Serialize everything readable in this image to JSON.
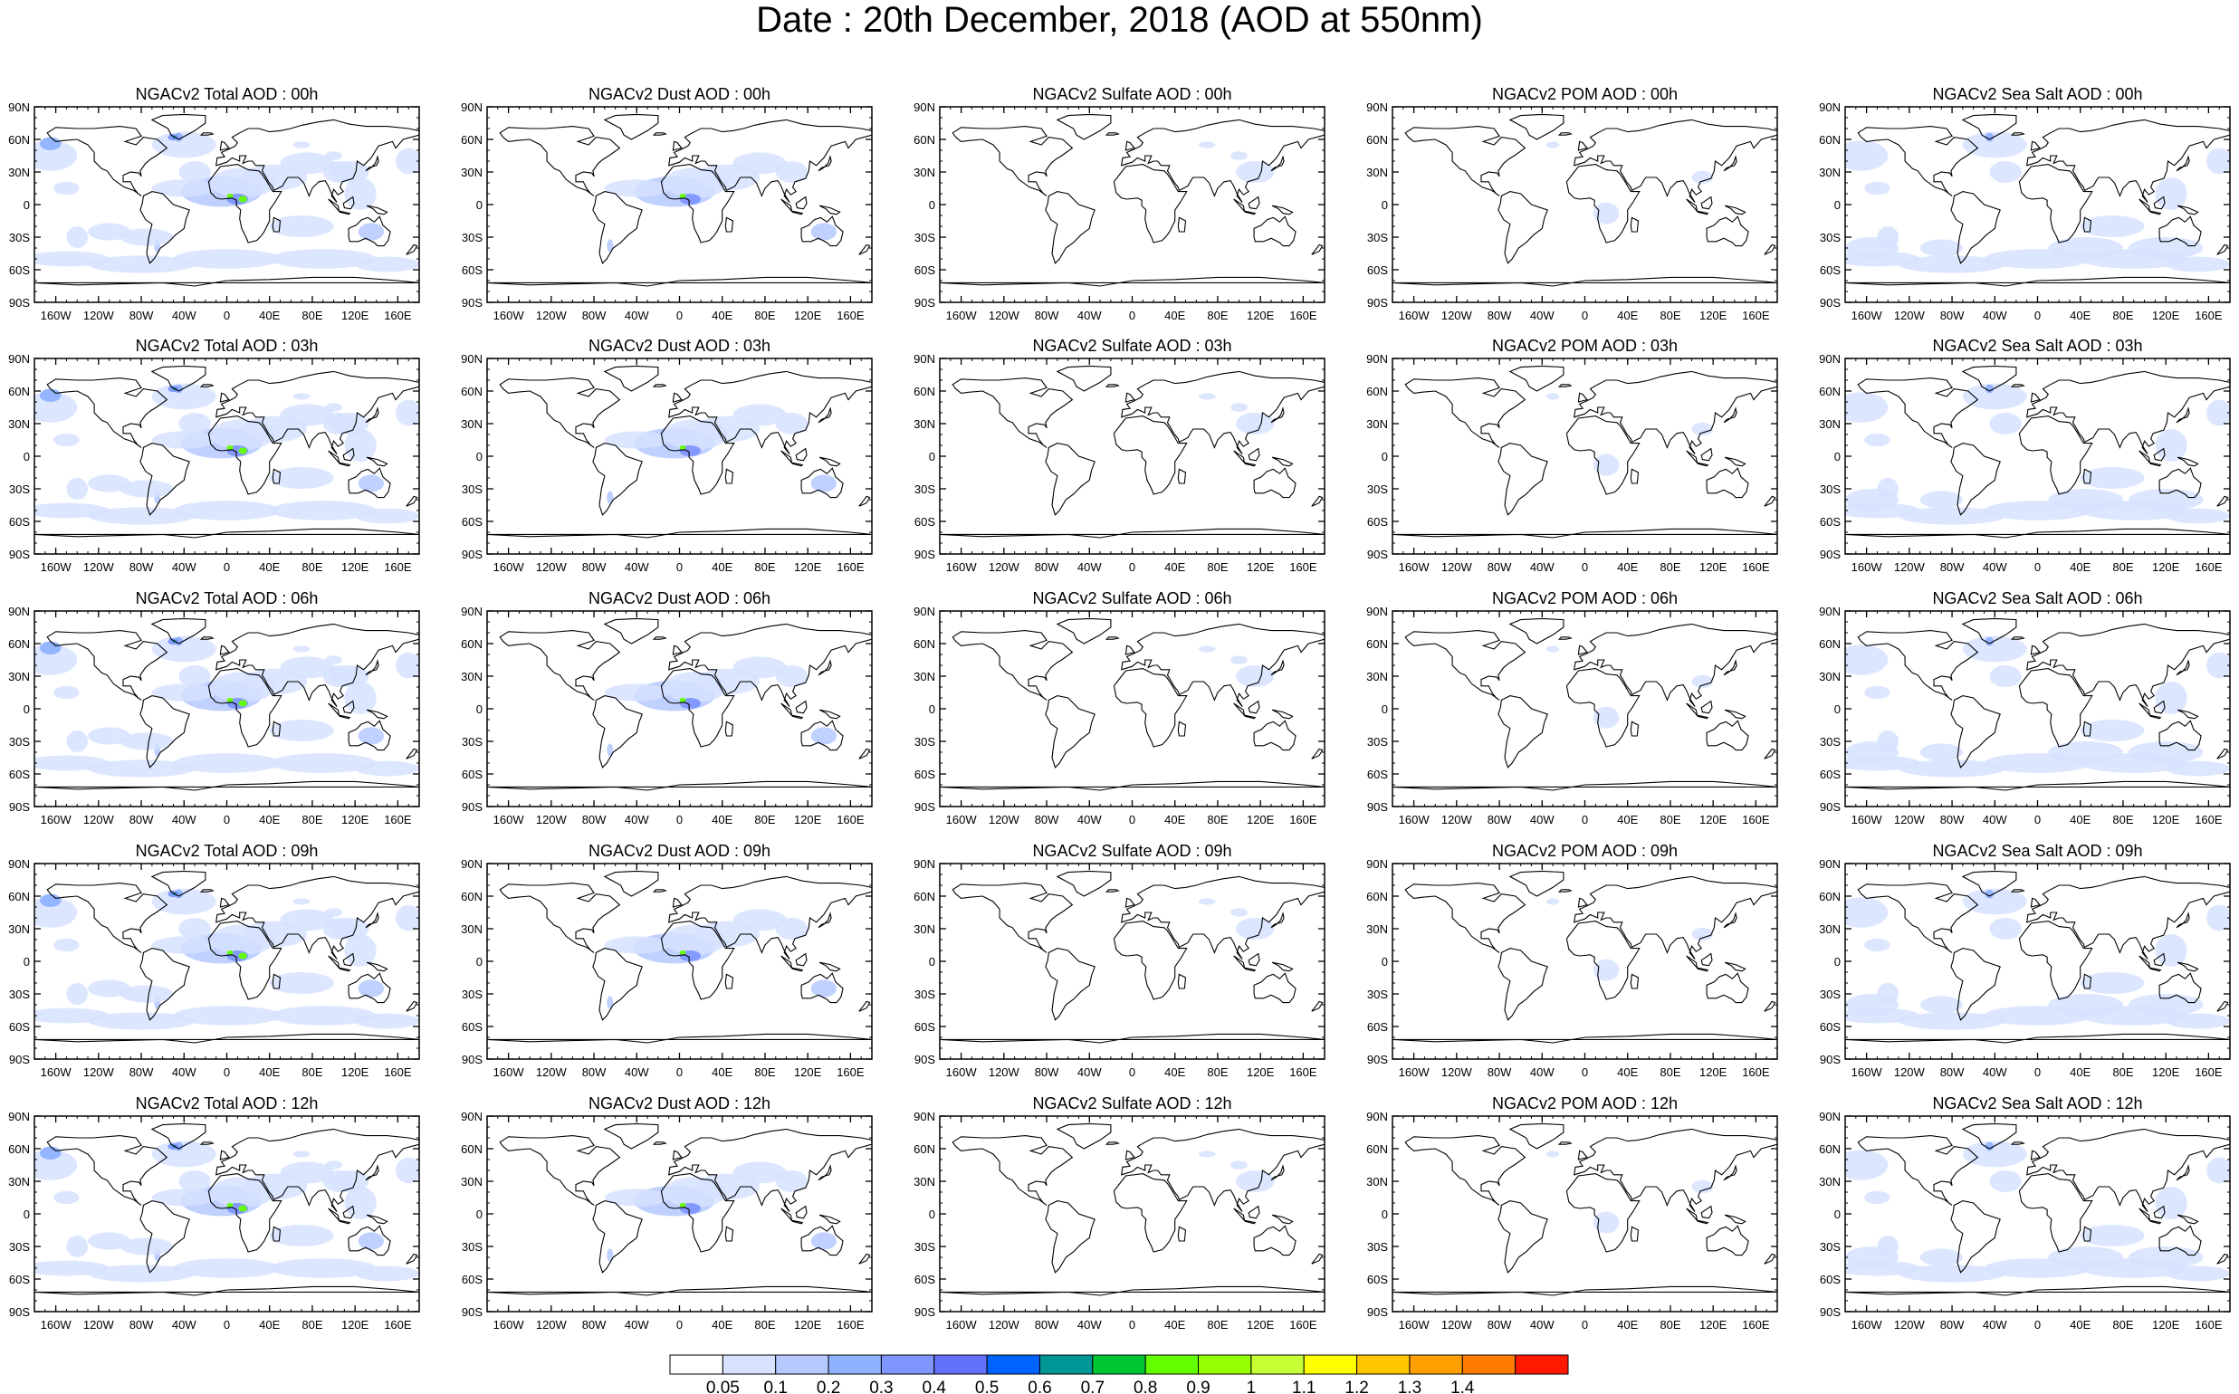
{
  "title": "Date : 20th December, 2018 (AOD at 550nm)",
  "lat_ticks": [
    "90N",
    "60N",
    "30N",
    "0",
    "30S",
    "60S",
    "90S"
  ],
  "lon_ticks": [
    "160W",
    "120W",
    "80W",
    "40W",
    "0",
    "40E",
    "80E",
    "120E",
    "160E"
  ],
  "panels": [
    [
      "NGACv2 Total AOD : 00h",
      "NGACv2 Dust AOD : 00h",
      "NGACv2 Sulfate AOD : 00h",
      "NGACv2 POM AOD : 00h",
      "NGACv2 Sea Salt AOD : 00h"
    ],
    [
      "NGACv2 Total AOD : 03h",
      "NGACv2 Dust AOD : 03h",
      "NGACv2 Sulfate AOD : 03h",
      "NGACv2 POM AOD : 03h",
      "NGACv2 Sea Salt AOD : 03h"
    ],
    [
      "NGACv2 Total AOD : 06h",
      "NGACv2 Dust AOD : 06h",
      "NGACv2 Sulfate AOD : 06h",
      "NGACv2 POM AOD : 06h",
      "NGACv2 Sea Salt AOD : 06h"
    ],
    [
      "NGACv2 Total AOD : 09h",
      "NGACv2 Dust AOD : 09h",
      "NGACv2 Sulfate AOD : 09h",
      "NGACv2 POM AOD : 09h",
      "NGACv2 Sea Salt  AOD : 09h"
    ],
    [
      "NGACv2 Total AOD : 12h",
      "NGACv2 Dust AOD : 12h",
      "NGACv2 Sulfate AOD : 12h",
      "NGACv2 POM  AOD : 12h",
      "NGACv2 Sea Salt  AOD : 12h"
    ]
  ],
  "colorbar": {
    "labels": [
      "0.05",
      "0.1",
      "0.2",
      "0.3",
      "0.4",
      "0.5",
      "0.6",
      "0.7",
      "0.8",
      "0.9",
      "1",
      "1.1",
      "1.2",
      "1.3",
      "1.4"
    ],
    "colors": [
      "#ffffff",
      "#d6e2ff",
      "#b5c9ff",
      "#8fb2ff",
      "#7f96ff",
      "#6370f8",
      "#0063ff",
      "#009696",
      "#00c633",
      "#63ff00",
      "#96ff00",
      "#c6ff33",
      "#ffff00",
      "#ffc600",
      "#ffa000",
      "#ff7c00",
      "#ff1900"
    ]
  },
  "colors": {
    "land_outline": "#000000",
    "aod_shading": "#b5c9ff"
  }
}
